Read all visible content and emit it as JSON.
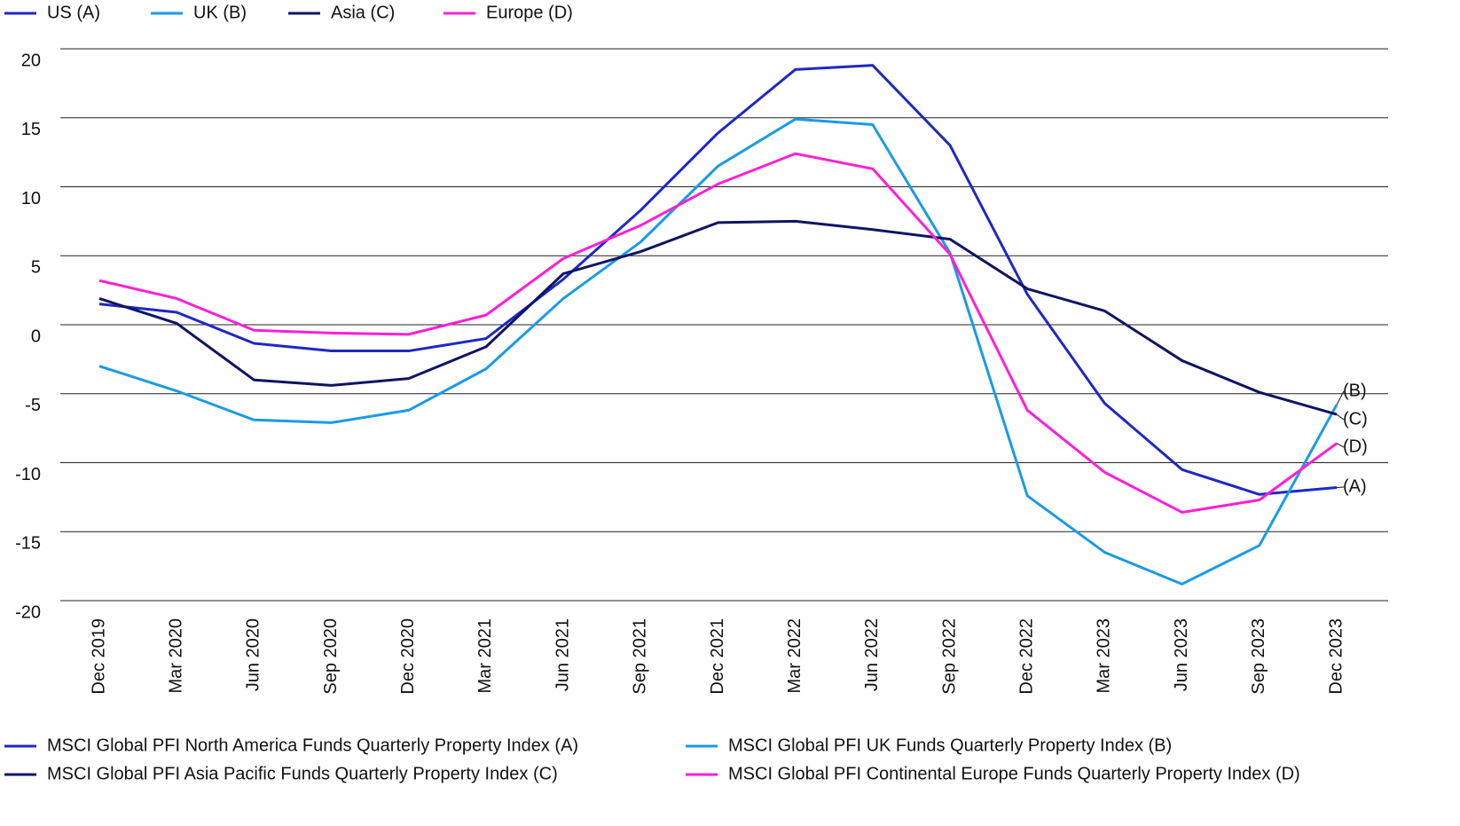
{
  "chart_data": {
    "type": "line",
    "categories": [
      "Dec 2019",
      "Mar 2020",
      "Jun 2020",
      "Sep 2020",
      "Dec 2020",
      "Mar 2021",
      "Jun 2021",
      "Sep 2021",
      "Dec 2021",
      "Mar 2022",
      "Jun 2022",
      "Sep 2022",
      "Dec 2022",
      "Mar 2023",
      "Jun 2023",
      "Sep 2023",
      "Dec 2023"
    ],
    "series": [
      {
        "name": "US (A)",
        "label": "(A)",
        "description": "MSCI Global PFI North America Funds Quarterly Property Index (A)",
        "color": "#1f28c4",
        "values": [
          1.5,
          0.9,
          -1.35,
          -1.9,
          -1.9,
          -1.0,
          3.3,
          8.3,
          13.9,
          18.5,
          18.8,
          13.0,
          2.2,
          -5.7,
          -10.5,
          -12.3,
          -11.8
        ]
      },
      {
        "name": "UK (B)",
        "label": "(B)",
        "description": "MSCI Global PFI UK Funds Quarterly Property Index (B)",
        "color": "#1a9be6",
        "values": [
          -3.0,
          -4.8,
          -6.9,
          -7.1,
          -6.2,
          -3.2,
          1.9,
          6.0,
          11.5,
          14.9,
          14.5,
          5.2,
          -12.4,
          -16.5,
          -18.8,
          -16.0,
          -5.8
        ]
      },
      {
        "name": "Asia (C)",
        "label": "(C)",
        "description": "MSCI Global PFI Asia Pacific Funds Quarterly Property Index (C)",
        "color": "#0f1464",
        "values": [
          1.9,
          0.1,
          -4.0,
          -4.4,
          -3.9,
          -1.6,
          3.7,
          5.3,
          7.4,
          7.5,
          6.9,
          6.2,
          2.6,
          1.0,
          -2.6,
          -4.9,
          -6.5
        ]
      },
      {
        "name": "Europe (D)",
        "label": "(D)",
        "description": "MSCI Global PFI Continental Europe Funds Quarterly Property Index (D)",
        "color": "#ff1fd6",
        "values": [
          3.2,
          1.9,
          -0.4,
          -0.6,
          -0.7,
          0.7,
          4.8,
          7.2,
          10.2,
          12.4,
          11.3,
          5.1,
          -6.2,
          -10.7,
          -13.6,
          -12.7,
          -8.6
        ]
      }
    ],
    "ylim": [
      -20,
      20
    ],
    "yticks": [
      -20,
      -15,
      -10,
      -5,
      0,
      5,
      10,
      15,
      20
    ],
    "grid": true
  }
}
